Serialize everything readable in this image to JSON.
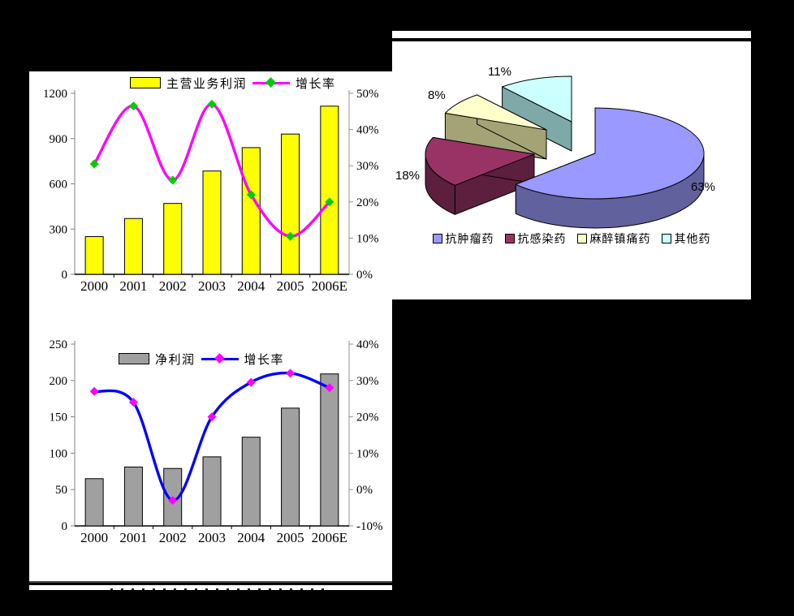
{
  "page": {
    "background": "#000000",
    "panel_background": "#FFFFFF"
  },
  "chart_data": [
    {
      "type": "bar-line",
      "title": "",
      "categories": [
        "2000",
        "2001",
        "2002",
        "2003",
        "2004",
        "2005",
        "2006E"
      ],
      "series": [
        {
          "type": "bar",
          "name": "主营业务利润",
          "axis": "left",
          "values": [
            250,
            370,
            470,
            685,
            840,
            930,
            1115
          ],
          "color": "#FFFF00"
        },
        {
          "type": "line",
          "name": "增长率",
          "axis": "right",
          "values": [
            30.5,
            46.5,
            26,
            47,
            22,
            10.5,
            20
          ],
          "color": "#FF00FF",
          "marker_color": "#00CC00"
        }
      ],
      "left_axis": {
        "min": 0,
        "max": 1200,
        "tick_labels": [
          "0",
          "300",
          "600",
          "900",
          "1200"
        ]
      },
      "right_axis": {
        "min": 0,
        "max": 50,
        "tick_labels": [
          "0%",
          "10%",
          "20%",
          "30%",
          "40%",
          "50%"
        ]
      },
      "grid": false,
      "legend_position": "top"
    },
    {
      "type": "bar-line",
      "title": "",
      "categories": [
        "2000",
        "2001",
        "2002",
        "2003",
        "2004",
        "2005",
        "2006E"
      ],
      "series": [
        {
          "type": "bar",
          "name": "净利润",
          "axis": "left",
          "values": [
            65,
            81,
            79,
            95,
            122,
            162,
            209
          ],
          "color": "#A0A0A0"
        },
        {
          "type": "line",
          "name": "增长率",
          "axis": "right",
          "values": [
            27,
            24,
            -3,
            20,
            29.5,
            32,
            28
          ],
          "color": "#0000FF",
          "marker_color": "#FF00FF"
        }
      ],
      "left_axis": {
        "min": 0,
        "max": 250,
        "tick_labels": [
          "0",
          "50",
          "100",
          "150",
          "200",
          "250"
        ]
      },
      "right_axis": {
        "min": -10,
        "max": 40,
        "tick_labels": [
          "-10%",
          "0%",
          "10%",
          "20%",
          "30%",
          "40%"
        ]
      },
      "grid": false,
      "legend_position": "top"
    },
    {
      "type": "pie",
      "title": "",
      "slices": [
        {
          "label": "抗肿瘤药",
          "value": 63,
          "pct_label": "63%",
          "color": "#9999FF",
          "side_color": "#61619E"
        },
        {
          "label": "抗感染药",
          "value": 18,
          "pct_label": "18%",
          "color": "#993366",
          "side_color": "#5C1F3D"
        },
        {
          "label": "麻醉镇痛药",
          "value": 8,
          "pct_label": "8%",
          "color": "#FFFFCC",
          "side_color": "#A3A375"
        },
        {
          "label": "其他药",
          "value": 11,
          "pct_label": "11%",
          "color": "#CCFFFF",
          "side_color": "#7FA8A8"
        }
      ],
      "legend_position": "bottom"
    }
  ]
}
